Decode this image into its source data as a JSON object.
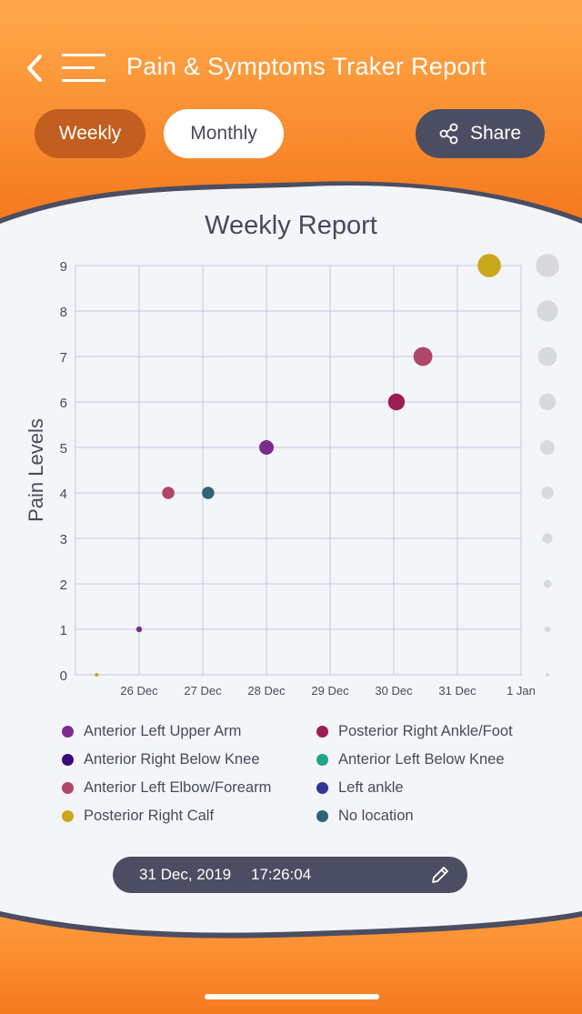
{
  "header": {
    "title": "Pain & Symptoms Traker Report",
    "tabs": [
      {
        "label": "Weekly",
        "active": true
      },
      {
        "label": "Monthly",
        "active": false
      }
    ],
    "share_label": "Share"
  },
  "chart_data": {
    "type": "scatter",
    "title": "Weekly Report",
    "xlabel": "",
    "ylabel": "Pain Levels",
    "x_ticks": [
      "26 Dec",
      "27 Dec",
      "28 Dec",
      "29 Dec",
      "30 Dec",
      "31 Dec",
      "1 Jan"
    ],
    "x_range": [
      "25 Dec",
      "1 Jan"
    ],
    "ylim": [
      0,
      9
    ],
    "y_ticks": [
      0,
      1,
      2,
      3,
      4,
      5,
      6,
      7,
      8,
      9
    ],
    "grid": true,
    "legend_position": "bottom",
    "size_scale_levels": [
      9,
      8,
      7,
      6,
      5,
      4,
      3,
      2,
      1,
      0
    ],
    "series": [
      {
        "name": "Anterior Left Upper Arm",
        "color": "#7b2d8b",
        "points": [
          {
            "x": "26 Dec 00:00",
            "y": 1
          },
          {
            "x": "28 Dec 00:00",
            "y": 5
          }
        ]
      },
      {
        "name": "Anterior Right Below Knee",
        "color": "#3b0a7a",
        "points": []
      },
      {
        "name": "Anterior Left Elbow/Forearm",
        "color": "#b2456a",
        "points": [
          {
            "x": "26 Dec 11:00",
            "y": 4
          },
          {
            "x": "30 Dec 11:00",
            "y": 7
          }
        ]
      },
      {
        "name": "Posterior Right Calf",
        "color": "#c9a81b",
        "points": [
          {
            "x": "25 Dec 08:00",
            "y": 0
          },
          {
            "x": "31 Dec 12:00",
            "y": 9
          }
        ]
      },
      {
        "name": "Posterior Right Ankle/Foot",
        "color": "#9c1d53",
        "points": [
          {
            "x": "30 Dec 01:00",
            "y": 6
          }
        ]
      },
      {
        "name": "Anterior Left Below Knee",
        "color": "#1fa58a",
        "points": []
      },
      {
        "name": "Left ankle",
        "color": "#2e3596",
        "points": []
      },
      {
        "name": "No location",
        "color": "#2f6378",
        "points": [
          {
            "x": "27 Dec 02:00",
            "y": 4
          }
        ]
      }
    ]
  },
  "date_bar": {
    "date": "31 Dec, 2019",
    "time": "17:26:04"
  },
  "colors": {
    "header_orange_top": "#ffa94a",
    "header_orange_bottom": "#f57a1e",
    "dark_slate": "#4b4e62",
    "weekly_pill": "#c25e1f",
    "grid": "#c4c6e0"
  },
  "icons": {
    "back": "chevron-left-icon",
    "menu": "hamburger-menu-icon",
    "share": "share-icon",
    "edit": "pencil-icon"
  }
}
